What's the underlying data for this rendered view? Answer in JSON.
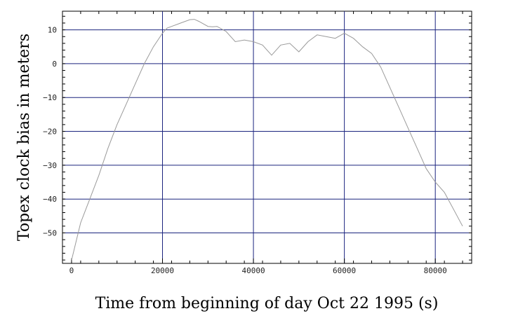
{
  "chart_data": {
    "type": "line",
    "title": "",
    "xlabel": "Time from beginning of day Oct 22 1995 (s)",
    "ylabel": "Topex clock bias in meters",
    "xlim": [
      -2000,
      88000
    ],
    "ylim": [
      -59,
      15.5
    ],
    "x_ticks": [
      0,
      20000,
      40000,
      60000,
      80000
    ],
    "x_tick_labels": [
      "0",
      "20000",
      "40000",
      "60000",
      "80000"
    ],
    "y_ticks": [
      10,
      0,
      -10,
      -20,
      -30,
      -40,
      -50
    ],
    "y_tick_labels": [
      "10",
      "0",
      "−10",
      "−20",
      "−30",
      "−40",
      "−50"
    ],
    "grid": true,
    "grid_color": "#1a237e",
    "line_color": "#9a9a9a",
    "series": [
      {
        "x": [
          0,
          2000,
          4000,
          6000,
          8000,
          10000,
          12000,
          14000,
          16000,
          18000,
          20000,
          21000,
          22000,
          24000,
          26000,
          27000,
          28000,
          30000,
          31000,
          32000,
          34000,
          36000,
          38000,
          40000,
          42000,
          44000,
          46000,
          48000,
          50000,
          52000,
          54000,
          56000,
          58000,
          60000,
          62000,
          64000,
          66000,
          68000,
          70000,
          72000,
          74000,
          76000,
          78000,
          80000,
          82000,
          84000,
          86000
        ],
        "y": [
          -58,
          -47,
          -40,
          -33,
          -25,
          -18,
          -12,
          -6,
          0,
          5,
          9,
          10.5,
          11,
          12,
          13,
          13.1,
          12.5,
          11,
          10.9,
          11,
          9.5,
          6.5,
          7,
          6.5,
          5.5,
          2.5,
          5.5,
          6,
          3.5,
          6.5,
          8.5,
          8,
          7.5,
          9,
          7.5,
          5,
          3,
          -1,
          -7,
          -13,
          -19,
          -25,
          -31,
          -35,
          -38,
          -43,
          -48
        ]
      }
    ]
  }
}
